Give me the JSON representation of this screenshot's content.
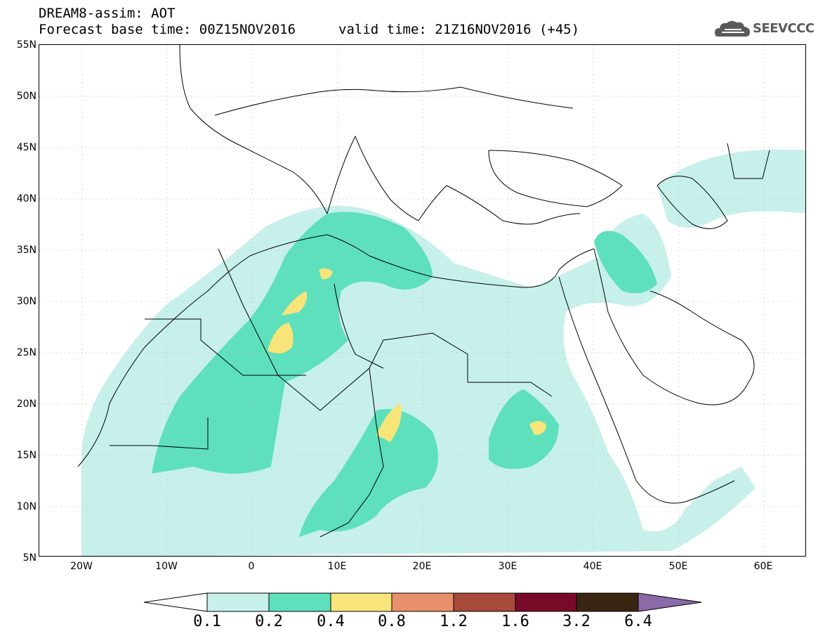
{
  "header": {
    "line1": "DREAM8-assim: AOT",
    "line2_left": "Forecast base time: 00Z15NOV2016",
    "line2_right": "valid time: 21Z16NOV2016 (+45)",
    "logo_text": "SEEVCCC",
    "logo_icon": "cloud-icon"
  },
  "axes": {
    "lat_labels": [
      "55N",
      "50N",
      "45N",
      "40N",
      "35N",
      "30N",
      "25N",
      "20N",
      "15N",
      "10N",
      "5N"
    ],
    "lon_labels": [
      "20W",
      "10W",
      "0",
      "10E",
      "20E",
      "30E",
      "40E",
      "50E",
      "60E"
    ],
    "lat_range": [
      5,
      55
    ],
    "lon_range": [
      -25,
      65
    ]
  },
  "colorbar": {
    "levels": [
      "0.1",
      "0.2",
      "0.4",
      "0.8",
      "1.2",
      "1.6",
      "3.2",
      "6.4"
    ],
    "colors": [
      "#c7f0ea",
      "#5ee0bc",
      "#f7e57a",
      "#e8906a",
      "#a84a3c",
      "#7a0a2a",
      "#3a2412",
      "#8a6aa8"
    ],
    "below_color": "#ffffff",
    "above_color": "#8a6aa8"
  }
}
